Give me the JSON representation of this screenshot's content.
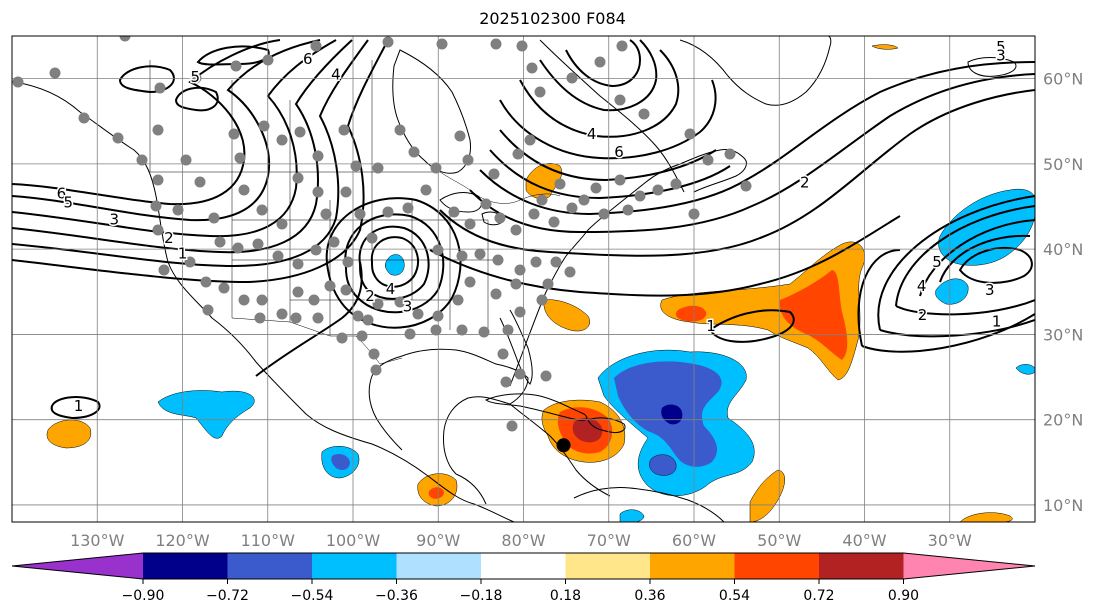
{
  "title": "2025102300 F084",
  "map": {
    "lon_range": [
      -140,
      -20
    ],
    "lat_range": [
      8,
      65
    ],
    "lon_ticks": [
      {
        "value": -130,
        "label": "130°W"
      },
      {
        "value": -120,
        "label": "120°W"
      },
      {
        "value": -110,
        "label": "110°W"
      },
      {
        "value": -100,
        "label": "100°W"
      },
      {
        "value": -90,
        "label": "90°W"
      },
      {
        "value": -80,
        "label": "80°W"
      },
      {
        "value": -70,
        "label": "70°W"
      },
      {
        "value": -60,
        "label": "60°W"
      },
      {
        "value": -50,
        "label": "50°W"
      },
      {
        "value": -40,
        "label": "40°W"
      },
      {
        "value": -30,
        "label": "30°W"
      }
    ],
    "lat_ticks": [
      {
        "value": 60,
        "label": "60°N"
      },
      {
        "value": 50,
        "label": "50°N"
      },
      {
        "value": 40,
        "label": "40°N"
      },
      {
        "value": 30,
        "label": "30°N"
      },
      {
        "value": 20,
        "label": "20°N"
      },
      {
        "value": 10,
        "label": "10°N"
      }
    ],
    "grid": true,
    "storm_marker": {
      "lon": -75.3,
      "lat": 17.0
    },
    "contour_labels": [
      {
        "text": "6",
        "lon": -105.3,
        "lat": 62.3
      },
      {
        "text": "4",
        "lon": -102,
        "lat": 60.5
      },
      {
        "text": "5",
        "lon": -118.5,
        "lat": 60.2
      },
      {
        "text": "6",
        "lon": -134.2,
        "lat": 46.5
      },
      {
        "text": "5",
        "lon": -133.4,
        "lat": 45.5
      },
      {
        "text": "3",
        "lon": -128,
        "lat": 43.5
      },
      {
        "text": "2",
        "lon": -121.6,
        "lat": 41.3
      },
      {
        "text": "1",
        "lon": -120,
        "lat": 39.5
      },
      {
        "text": "2",
        "lon": -98,
        "lat": 34.5
      },
      {
        "text": "4",
        "lon": -95.6,
        "lat": 35.3
      },
      {
        "text": "3",
        "lon": -93.6,
        "lat": 33.3
      },
      {
        "text": "4",
        "lon": -72,
        "lat": 53.5
      },
      {
        "text": "6",
        "lon": -68.8,
        "lat": 51.4
      },
      {
        "text": "2",
        "lon": -47,
        "lat": 47.8
      },
      {
        "text": "1",
        "lon": -58,
        "lat": 31.0
      },
      {
        "text": "5",
        "lon": -24,
        "lat": 63.7
      },
      {
        "text": "3",
        "lon": -24,
        "lat": 62.7
      },
      {
        "text": "5",
        "lon": -31.5,
        "lat": 38.5
      },
      {
        "text": "4",
        "lon": -33.3,
        "lat": 35.7
      },
      {
        "text": "3",
        "lon": -25.3,
        "lat": 35.2
      },
      {
        "text": "2",
        "lon": -33.2,
        "lat": 32.3
      },
      {
        "text": "1",
        "lon": -24.5,
        "lat": 31.5
      },
      {
        "text": "1",
        "lon": -132.2,
        "lat": 21.6
      }
    ]
  },
  "colorbar": {
    "colors": [
      "#9932cc",
      "#00008b",
      "#3b5bcc",
      "#00bfff",
      "#b0e0ff",
      "#ffffff",
      "#ffe68a",
      "#ffa500",
      "#ff4500",
      "#b22222",
      "#ff85b0"
    ],
    "tick_labels": [
      "−0.90",
      "−0.72",
      "−0.54",
      "−0.36",
      "−0.18",
      "0.18",
      "0.36",
      "0.54",
      "0.72",
      "0.90"
    ],
    "tick_values": [
      -0.9,
      -0.72,
      -0.54,
      -0.36,
      -0.18,
      0.18,
      0.36,
      0.54,
      0.72,
      0.9
    ]
  }
}
